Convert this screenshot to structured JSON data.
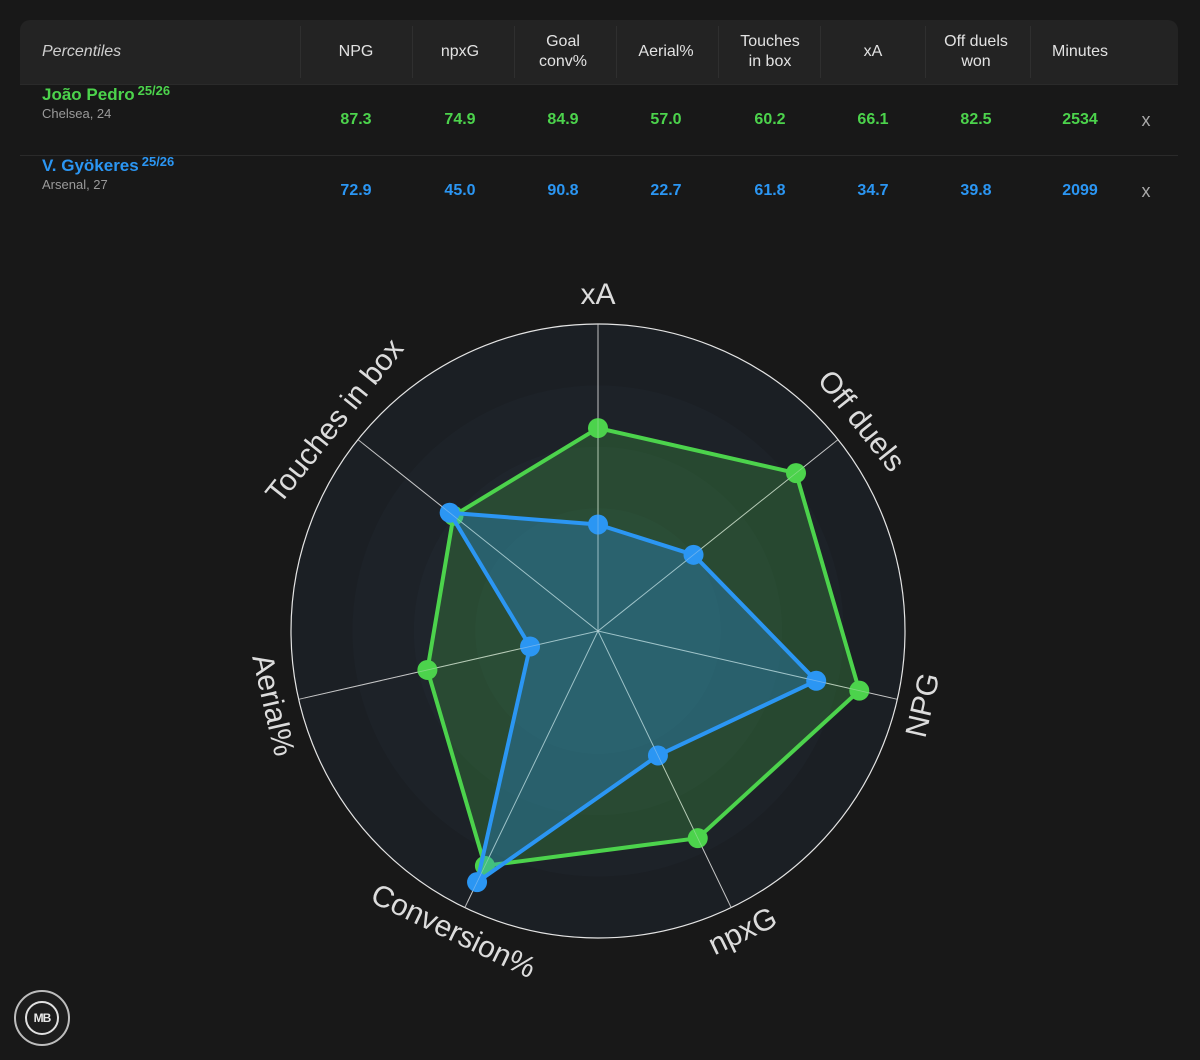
{
  "table": {
    "title": "Percentiles",
    "columns": [
      {
        "line1": "NPG",
        "line2": ""
      },
      {
        "line1": "npxG",
        "line2": ""
      },
      {
        "line1": "Goal",
        "line2": "conv%"
      },
      {
        "line1": "Aerial%",
        "line2": ""
      },
      {
        "line1": "Touches",
        "line2": "in box"
      },
      {
        "line1": "xA",
        "line2": ""
      },
      {
        "line1": "Off duels",
        "line2": "won"
      },
      {
        "line1": "Minutes",
        "line2": ""
      }
    ],
    "players": [
      {
        "name": "João Pedro",
        "season": "25/26",
        "club": "Chelsea, 24",
        "color": "#4cd34c",
        "values": [
          "87.3",
          "74.9",
          "84.9",
          "57.0",
          "60.2",
          "66.1",
          "82.5",
          "2534"
        ],
        "remove": "x"
      },
      {
        "name": "V. Gyökeres",
        "season": "25/26",
        "club": "Arsenal, 27",
        "color": "#2b96f3",
        "values": [
          "72.9",
          "45.0",
          "90.8",
          "22.7",
          "61.8",
          "34.7",
          "39.8",
          "2099"
        ],
        "remove": "x"
      }
    ]
  },
  "chart_data": {
    "type": "radar",
    "axes": [
      "xA",
      "Off duels",
      "NPG",
      "npxG",
      "Conversion%",
      "Aerial%",
      "Touches in box"
    ],
    "range": [
      0,
      100
    ],
    "series": [
      {
        "name": "João Pedro",
        "color": "#4cd34c",
        "values": [
          66.1,
          82.5,
          87.3,
          74.9,
          84.9,
          57.0,
          60.2
        ]
      },
      {
        "name": "V. Gyökeres",
        "color": "#2b96f3",
        "values": [
          34.7,
          39.8,
          72.9,
          45.0,
          90.8,
          22.7,
          61.8
        ]
      }
    ]
  },
  "logo": {
    "text": "MB"
  }
}
